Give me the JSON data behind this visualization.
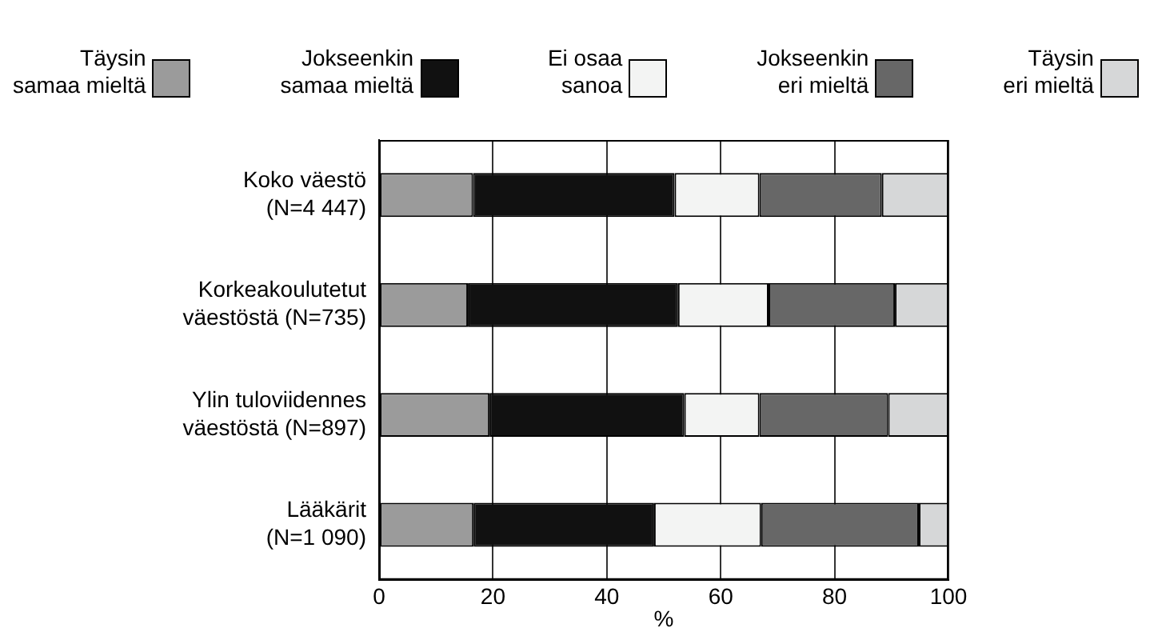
{
  "chart_data": {
    "type": "bar",
    "orientation": "horizontal",
    "stacked": true,
    "xlabel": "%",
    "categories": [
      "Koko väestö\n(N=4 447)",
      "Korkeakoulutetut\nväestöstä (N=735)",
      "Ylin tuloviidennes\nväestöstä (N=897)",
      "Lääkärit\n(N=1 090)"
    ],
    "series": [
      {
        "name": "Täysin\nsamaa mieltä",
        "color": "#9b9b9b",
        "values": [
          16.5,
          15.6,
          19.4,
          16.6
        ]
      },
      {
        "name": "Jokseenkin\nsamaa mieltä",
        "color": "#111111",
        "values": [
          35.4,
          36.9,
          34.2,
          31.7
        ]
      },
      {
        "name": "Ei osaa\nsanoa",
        "color": "#f3f4f3",
        "values": [
          14.9,
          15.9,
          13.2,
          18.8
        ]
      },
      {
        "name": "Jokseenkin\neri mieltä",
        "color": "#676767",
        "values": [
          21.5,
          22.2,
          22.6,
          27.7
        ]
      },
      {
        "name": "Täysin\neri mieltä",
        "color": "#d6d7d8",
        "values": [
          11.7,
          9.4,
          10.6,
          5.2
        ]
      }
    ],
    "xlim": [
      0,
      100
    ],
    "xticks": [
      0,
      20,
      40,
      60,
      80,
      100
    ],
    "grid": "x",
    "legend": "top"
  }
}
